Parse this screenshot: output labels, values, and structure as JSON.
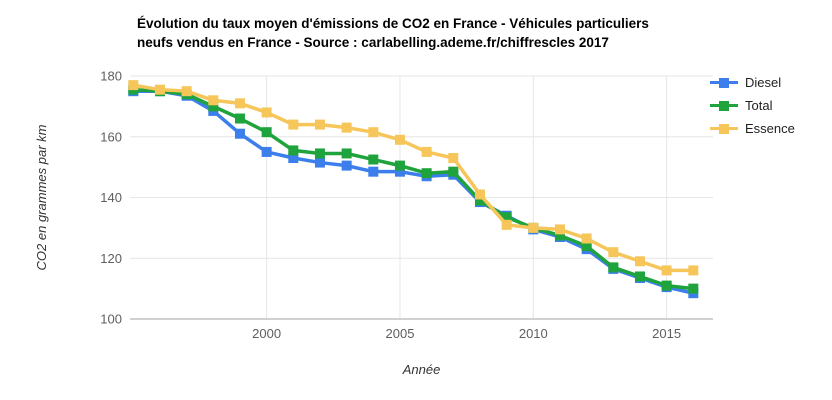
{
  "header": {
    "title_line1": "Évolution du taux moyen d'émissions de CO2 en France - Véhicules particuliers",
    "title_line2": "neufs vendus en France - Source : carlabelling.ademe.fr/chiffrescles 2017"
  },
  "colors": {
    "diesel": "#3C7EEC",
    "total": "#1FA33C",
    "essence": "#F6C65A",
    "grid": "#E6E6E6",
    "axis_line": "#C2C2C2",
    "tick_label": "#5F5F5F",
    "axis_title": "#333333",
    "title_text": "#000000",
    "legend_text": "#1F1F1F"
  },
  "chart_data": {
    "type": "line",
    "title": "Évolution du taux moyen d'émissions de CO2 en France - Véhicules particuliers neufs vendus en France - Source : carlabelling.ademe.fr/chiffrescles 2017",
    "xlabel": "Année",
    "ylabel": "CO2 en grammes par km",
    "x": [
      1995,
      1996,
      1997,
      1998,
      1999,
      2000,
      2001,
      2002,
      2003,
      2004,
      2005,
      2006,
      2007,
      2008,
      2009,
      2010,
      2011,
      2012,
      2013,
      2014,
      2015,
      2016
    ],
    "xticks": [
      2000,
      2005,
      2010,
      2015
    ],
    "yticks": [
      100,
      120,
      140,
      160,
      180
    ],
    "ylim": [
      100,
      180
    ],
    "grid": true,
    "legend_position": "top-right",
    "marker": "square",
    "series": [
      {
        "name": "Diesel",
        "color": "#3C7EEC",
        "values": [
          175,
          175,
          173.5,
          168.5,
          161,
          155,
          153,
          151.5,
          150.5,
          148.5,
          148.5,
          147,
          147.5,
          138.5,
          134,
          129.5,
          127,
          123,
          116.5,
          113.5,
          110.5,
          108.5
        ]
      },
      {
        "name": "Total",
        "color": "#1FA33C",
        "values": [
          175.5,
          175,
          174,
          170,
          166,
          161.5,
          155.5,
          154.5,
          154.5,
          152.5,
          150.5,
          148,
          148.5,
          139,
          133.5,
          130,
          127.5,
          124,
          117,
          114,
          111,
          110
        ]
      },
      {
        "name": "Essence",
        "color": "#F6C65A",
        "values": [
          177,
          175.5,
          175,
          172,
          171,
          168,
          164,
          164,
          163,
          161.5,
          159,
          155,
          153,
          141,
          131,
          130,
          129.5,
          126.5,
          122,
          119,
          116,
          116
        ]
      }
    ]
  }
}
